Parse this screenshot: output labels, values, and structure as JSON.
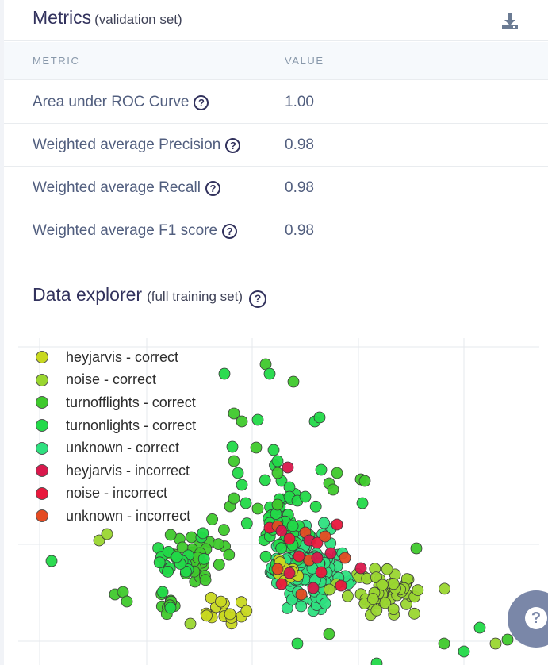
{
  "metrics": {
    "title": "Metrics",
    "subtitle": "(validation set)",
    "download_icon": "download-icon",
    "columns": {
      "metric": "METRIC",
      "value": "VALUE"
    },
    "rows": [
      {
        "name": "Area under ROC Curve",
        "value": "1.00"
      },
      {
        "name": "Weighted average Precision",
        "value": "0.98"
      },
      {
        "name": "Weighted average Recall",
        "value": "0.98"
      },
      {
        "name": "Weighted average F1 score",
        "value": "0.98"
      }
    ],
    "help_glyph": "?"
  },
  "explorer": {
    "title": "Data explorer",
    "subtitle": "(full training set)",
    "help_glyph": "?"
  },
  "fab": {
    "glyph": "?"
  },
  "chart_data": {
    "type": "scatter",
    "title": "",
    "xlabel": "",
    "ylabel": "",
    "grid": true,
    "legend_position": "top-left",
    "series": [
      {
        "name": "heyjarvis - correct",
        "color": "#c8d820"
      },
      {
        "name": "noise - correct",
        "color": "#9ad630"
      },
      {
        "name": "turnofflights - correct",
        "color": "#3fc92c"
      },
      {
        "name": "turnonlights - correct",
        "color": "#22d948"
      },
      {
        "name": "unknown - correct",
        "color": "#2ee07f"
      },
      {
        "name": "heyjarvis - incorrect",
        "color": "#d8184c"
      },
      {
        "name": "noise - incorrect",
        "color": "#e8183c"
      },
      {
        "name": "unknown - incorrect",
        "color": "#e44b22"
      }
    ]
  }
}
